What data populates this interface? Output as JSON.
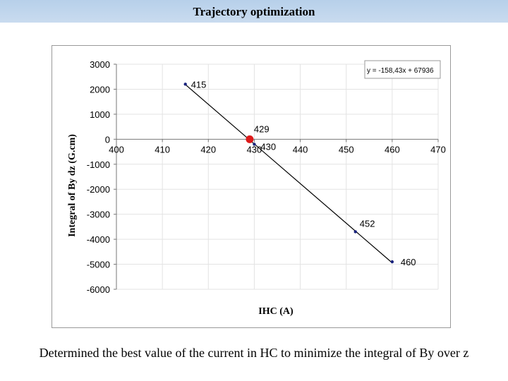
{
  "slide": {
    "title": "Trajectory optimization",
    "caption": "Determined the best value of the current in HC to minimize the integral of By over z"
  },
  "colors": {
    "title_bar": "#c2d6ee",
    "line": "#000000",
    "point": "#1a237e",
    "optimum": "#dd1a1a"
  },
  "chart_data": {
    "type": "scatter",
    "xlabel": "IHC (A)",
    "ylabel": "Integral of By dz (G.cm)",
    "xlim": [
      400,
      470
    ],
    "ylim": [
      -6000,
      3000
    ],
    "xticks": [
      400,
      410,
      420,
      430,
      440,
      450,
      460,
      470
    ],
    "yticks": [
      3000,
      2000,
      1000,
      0,
      -1000,
      -2000,
      -3000,
      -4000,
      -5000,
      -6000
    ],
    "grid": true,
    "series": [
      {
        "points": [
          {
            "x": 415,
            "y": 2200,
            "label": "415"
          },
          {
            "x": 430,
            "y": -200,
            "label": "430"
          },
          {
            "x": 452,
            "y": -3700,
            "label": "452"
          },
          {
            "x": 460,
            "y": -4900,
            "label": "460"
          }
        ]
      }
    ],
    "optimum": {
      "x": 429,
      "y": 0,
      "label": "429"
    },
    "trendline": {
      "slope": -158.43,
      "intercept": 67936,
      "equation": "y = -158,43x + 67936",
      "x_from": 415,
      "x_to": 460
    }
  }
}
